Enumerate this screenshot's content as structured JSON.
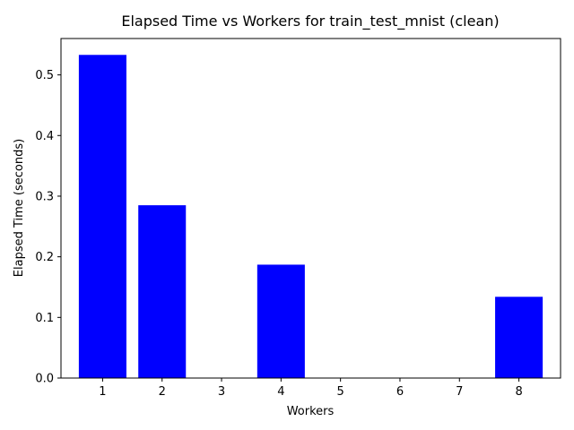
{
  "chart_data": {
    "type": "bar",
    "title": "Elapsed Time vs Workers for train_test_mnist (clean)",
    "xlabel": "Workers",
    "ylabel": "Elapsed Time (seconds)",
    "x": [
      1,
      2,
      4,
      8
    ],
    "values": [
      0.533,
      0.285,
      0.187,
      0.134
    ],
    "x_ticks": [
      "1",
      "2",
      "3",
      "4",
      "5",
      "6",
      "7",
      "8"
    ],
    "y_ticks": [
      "0.0",
      "0.1",
      "0.2",
      "0.3",
      "0.4",
      "0.5"
    ],
    "xlim": [
      0.3,
      8.7
    ],
    "ylim": [
      0,
      0.56
    ],
    "bar_color": "#0000ff",
    "grid": false,
    "legend": "none"
  }
}
